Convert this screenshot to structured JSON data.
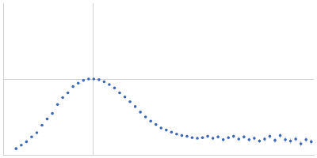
{
  "chart_data": {
    "type": "scatter",
    "color": "#3a66b8",
    "marker": "circle",
    "grid": true,
    "tick_labels": false,
    "xlim": [
      0,
      6
    ],
    "ylim": [
      0,
      2.2
    ],
    "xticks": [
      1.73
    ],
    "yticks": [
      1.1
    ],
    "x": [
      0.25,
      0.35,
      0.45,
      0.55,
      0.65,
      0.75,
      0.85,
      0.95,
      1.05,
      1.15,
      1.25,
      1.35,
      1.45,
      1.55,
      1.65,
      1.75,
      1.85,
      1.95,
      2.05,
      2.15,
      2.25,
      2.35,
      2.45,
      2.55,
      2.65,
      2.75,
      2.85,
      2.95,
      3.05,
      3.15,
      3.25,
      3.35,
      3.45,
      3.55,
      3.65,
      3.75,
      3.85,
      3.95,
      4.05,
      4.15,
      4.25,
      4.35,
      4.45,
      4.55,
      4.65,
      4.75,
      4.85,
      4.95,
      5.05,
      5.15,
      5.25,
      5.35,
      5.45,
      5.55,
      5.65,
      5.75,
      5.85,
      5.95
    ],
    "values": [
      0.09,
      0.14,
      0.19,
      0.26,
      0.32,
      0.43,
      0.52,
      0.6,
      0.73,
      0.83,
      0.9,
      0.99,
      1.04,
      1.08,
      1.1,
      1.1,
      1.09,
      1.06,
      1.02,
      0.97,
      0.9,
      0.84,
      0.77,
      0.7,
      0.62,
      0.55,
      0.49,
      0.44,
      0.39,
      0.36,
      0.33,
      0.3,
      0.28,
      0.27,
      0.25,
      0.24,
      0.25,
      0.27,
      0.24,
      0.26,
      0.22,
      0.25,
      0.27,
      0.23,
      0.26,
      0.22,
      0.24,
      0.2,
      0.23,
      0.27,
      0.21,
      0.28,
      0.22,
      0.2,
      0.23,
      0.16,
      0.22,
      0.19
    ],
    "errors": [
      0.005,
      0.005,
      0.005,
      0.005,
      0.005,
      0.005,
      0.005,
      0.005,
      0.005,
      0.005,
      0.005,
      0.005,
      0.005,
      0.005,
      0.005,
      0.005,
      0.005,
      0.005,
      0.008,
      0.008,
      0.008,
      0.01,
      0.01,
      0.01,
      0.01,
      0.012,
      0.012,
      0.012,
      0.015,
      0.015,
      0.015,
      0.015,
      0.02,
      0.02,
      0.02,
      0.02,
      0.02,
      0.025,
      0.025,
      0.025,
      0.025,
      0.025,
      0.03,
      0.03,
      0.03,
      0.03,
      0.03,
      0.03,
      0.035,
      0.035,
      0.035,
      0.035,
      0.04,
      0.04,
      0.04,
      0.04,
      0.04,
      0.04
    ]
  }
}
